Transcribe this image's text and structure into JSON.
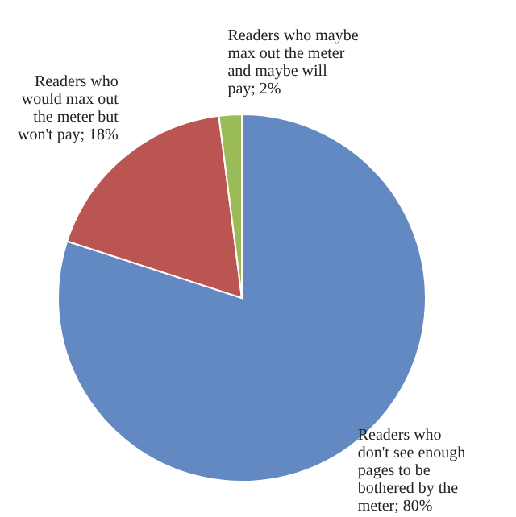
{
  "chart_data": {
    "type": "pie",
    "categories": [
      "Readers who don't see enough pages to be bothered by the meter",
      "Readers who would max out the meter but won't pay",
      "Readers who maybe max out the meter and maybe will pay"
    ],
    "values": [
      80,
      18,
      2
    ],
    "value_labels": [
      "80%",
      "18%",
      "2%"
    ],
    "colors": [
      "#6289c1",
      "#bb5552",
      "#9bbb59"
    ]
  }
}
